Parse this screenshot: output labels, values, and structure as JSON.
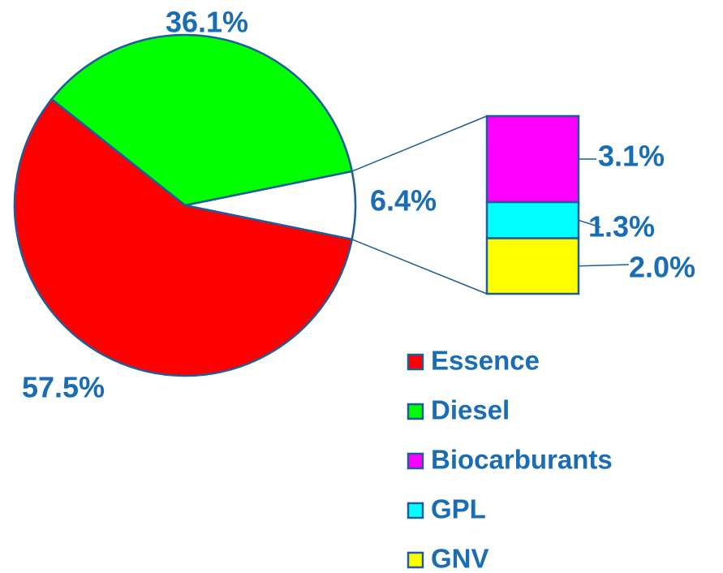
{
  "chart_data": {
    "type": "pie",
    "categories": [
      "Essence",
      "Diesel",
      null
    ],
    "values": [
      57.5,
      36.1,
      6.4
    ],
    "value_labels": [
      "57.5%",
      "36.1%",
      "6.4%"
    ],
    "colors": [
      "#ff0000",
      "#00ff00",
      "#ffffff"
    ],
    "breakdown": {
      "type": "stacked-bar",
      "categories": [
        "Biocarburants",
        "GPL",
        "GNV"
      ],
      "values": [
        3.1,
        1.3,
        2.0
      ],
      "value_labels": [
        "3.1%",
        "1.3%",
        "2.0%"
      ],
      "colors": [
        "#ff00ff",
        "#00ffff",
        "#ffff00"
      ]
    },
    "legend": "lower right"
  }
}
